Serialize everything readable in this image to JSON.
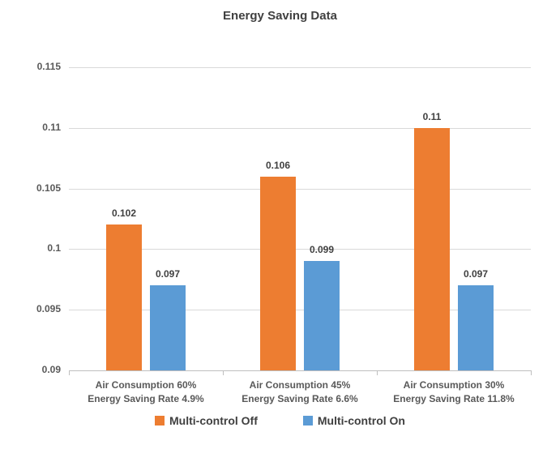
{
  "chart_data": {
    "type": "bar",
    "title": "Energy Saving Data",
    "categories": [
      [
        "Air Consumption 60%",
        "Energy Saving Rate 4.9%"
      ],
      [
        "Air Consumption 45%",
        "Energy Saving Rate 6.6%"
      ],
      [
        "Air Consumption 30%",
        "Energy Saving Rate 11.8%"
      ]
    ],
    "series": [
      {
        "name": "Multi-control Off",
        "color": "#ED7D31",
        "values": [
          0.102,
          0.106,
          0.11
        ],
        "labels": [
          "0.102",
          "0.106",
          "0.11"
        ]
      },
      {
        "name": "Multi-control On",
        "color": "#5B9BD5",
        "values": [
          0.097,
          0.099,
          0.097
        ],
        "labels": [
          "0.097",
          "0.099",
          "0.097"
        ]
      }
    ],
    "ylim": [
      0.09,
      0.115
    ],
    "ytick_step": 0.005,
    "ytick_labels": [
      "0.09",
      "0.095",
      "0.1",
      "0.105",
      "0.11",
      "0.115"
    ],
    "grid": true,
    "legend_position": "bottom",
    "colors": {
      "gridline": "#D9D9D9",
      "axis_line": "#BFBFBF",
      "tick_label_text": "#595959",
      "data_label_text": "#404040",
      "title_text": "#404040",
      "legend_text": "#404040",
      "background": "#FFFFFF"
    }
  }
}
